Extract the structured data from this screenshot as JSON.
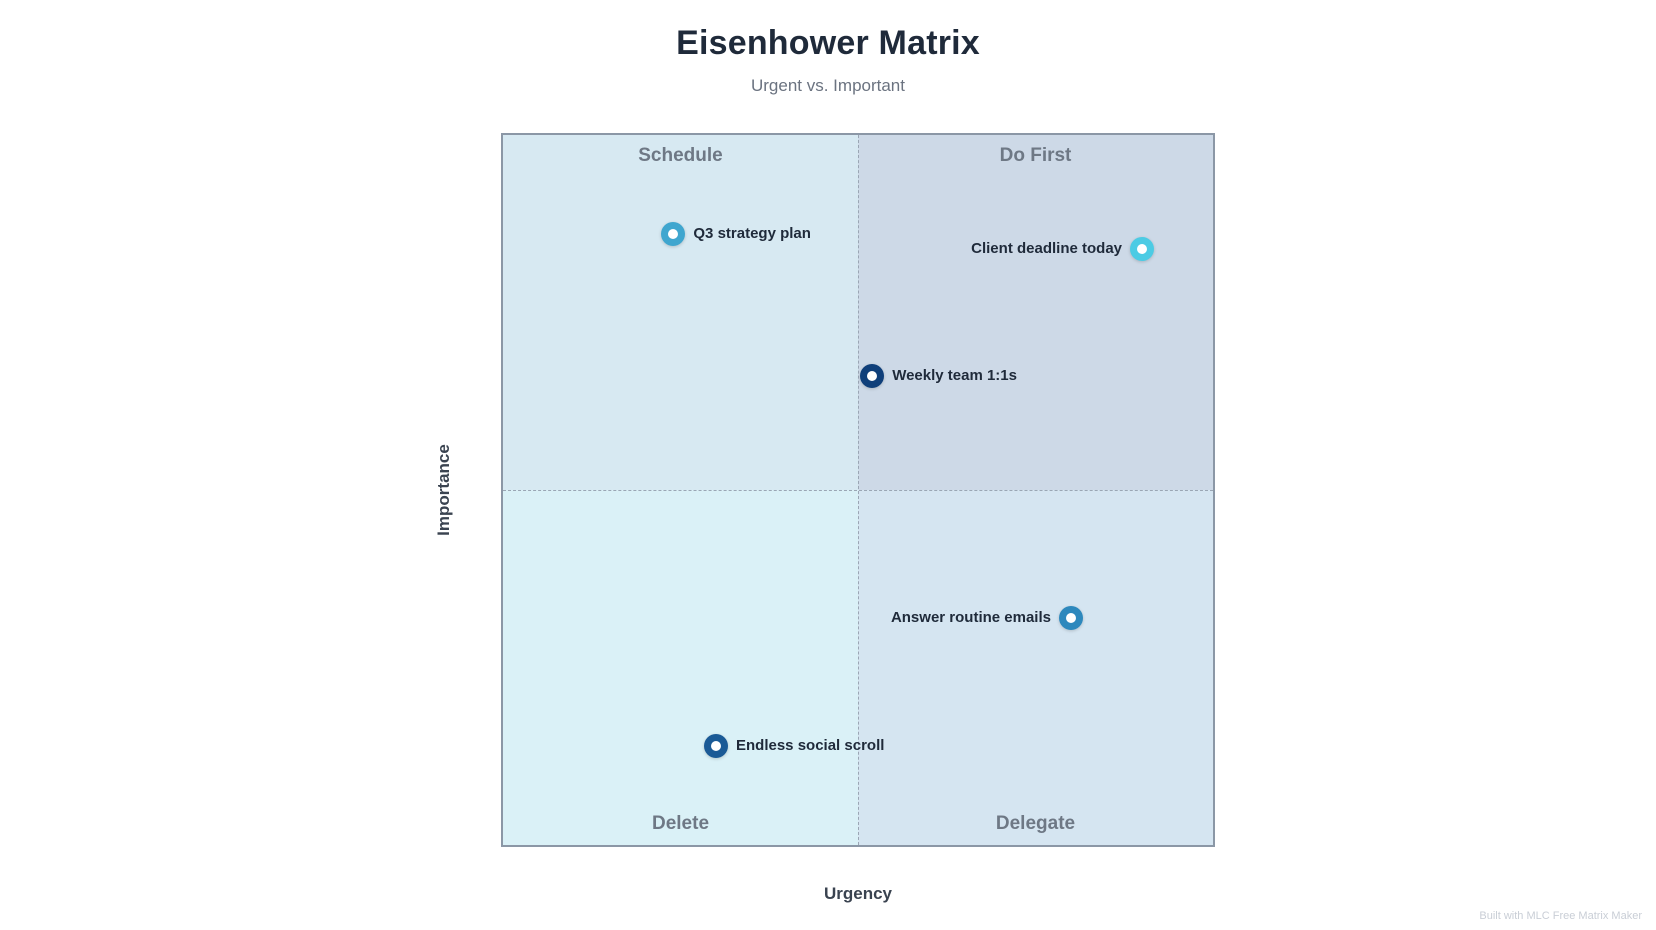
{
  "header": {
    "title": "Eisenhower Matrix",
    "subtitle": "Urgent vs. Important"
  },
  "axes": {
    "x_label": "Urgency",
    "y_label": "Importance"
  },
  "quadrants": {
    "top_left": "Schedule",
    "top_right": "Do First",
    "bottom_left": "Delete",
    "bottom_right": "Delegate"
  },
  "colors": {
    "schedule": "#d7e9f2",
    "do_first": "#cdd9e7",
    "delete": "#daf1f7",
    "delegate": "#d5e5f1",
    "border": "#8b97a6"
  },
  "items": [
    {
      "label": "Q3 strategy plan",
      "urgency": 0.24,
      "importance": 0.86,
      "color": "#3fa6cf",
      "label_side": "right"
    },
    {
      "label": "Client deadline today",
      "urgency": 0.9,
      "importance": 0.84,
      "color": "#4ccbe4",
      "label_side": "left"
    },
    {
      "label": "Weekly team 1:1s",
      "urgency": 0.52,
      "importance": 0.66,
      "color": "#0f3f7a",
      "label_side": "right"
    },
    {
      "label": "Answer routine emails",
      "urgency": 0.8,
      "importance": 0.32,
      "color": "#2d88bd",
      "label_side": "left"
    },
    {
      "label": "Endless social scroll",
      "urgency": 0.3,
      "importance": 0.14,
      "color": "#1a5a96",
      "label_side": "right"
    }
  ],
  "footer": "Built with MLC Free Matrix Maker"
}
